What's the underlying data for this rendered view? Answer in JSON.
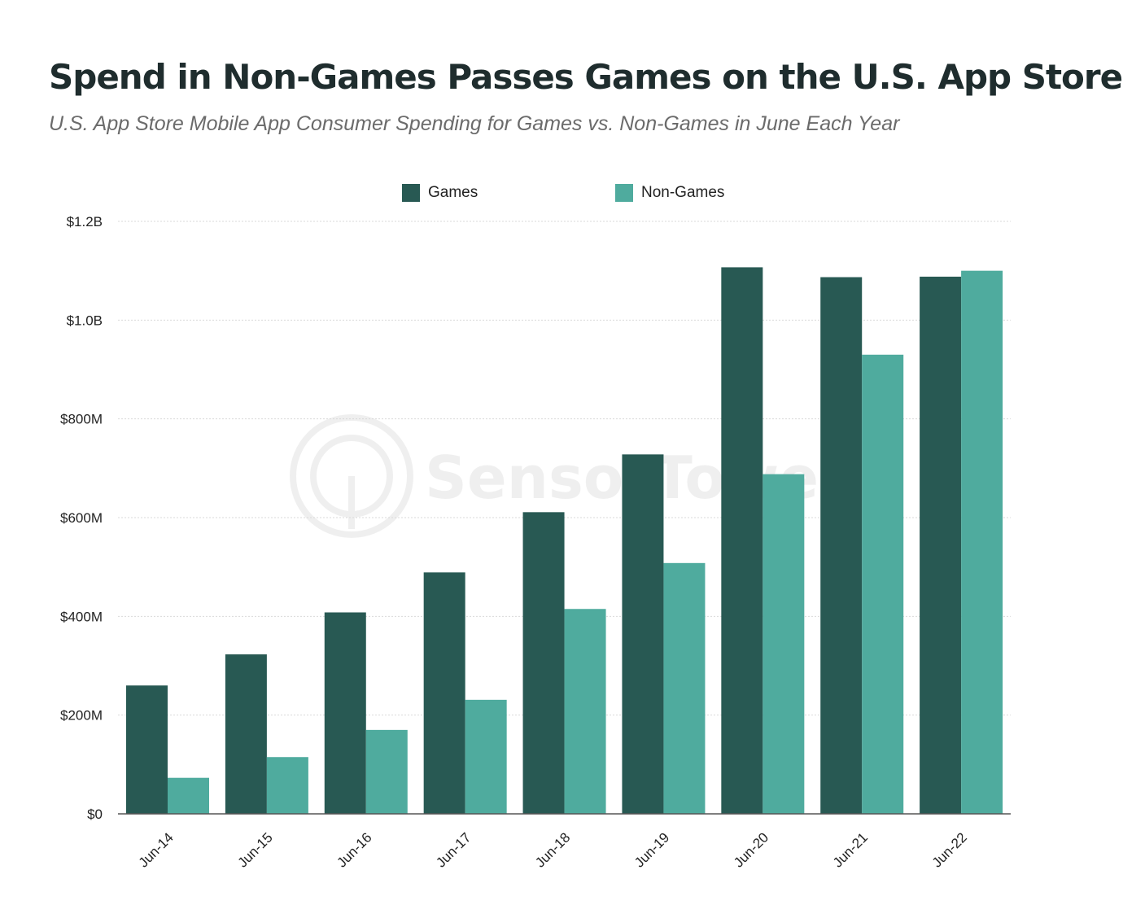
{
  "chart_data": {
    "type": "bar",
    "title": "Spend in Non-Games Passes Games on the U.S. App Store",
    "subtitle": "U.S. App Store Mobile App Consumer Spending for Games vs. Non-Games in June Each Year",
    "categories": [
      "Jun-14",
      "Jun-15",
      "Jun-16",
      "Jun-17",
      "Jun-18",
      "Jun-19",
      "Jun-20",
      "Jun-21",
      "Jun-22"
    ],
    "series": [
      {
        "name": "Games",
        "color": "#285953",
        "values": [
          260,
          323,
          408,
          489,
          611,
          728,
          1107,
          1087,
          1088
        ]
      },
      {
        "name": "Non-Games",
        "color": "#4fab9e",
        "values": [
          73,
          115,
          170,
          231,
          415,
          508,
          688,
          930,
          1100
        ]
      }
    ],
    "ylim": [
      0,
      1200
    ],
    "yticks": [
      0,
      200,
      400,
      600,
      800,
      1000,
      1200
    ],
    "ytick_labels": [
      "$0",
      "$200M",
      "$400M",
      "$600M",
      "$800M",
      "$1.0B",
      "$1.2B"
    ],
    "xlabel": "",
    "ylabel": "",
    "units": "USD millions",
    "grid": true,
    "legend_position": "top-center",
    "watermark": "SensorTower"
  }
}
